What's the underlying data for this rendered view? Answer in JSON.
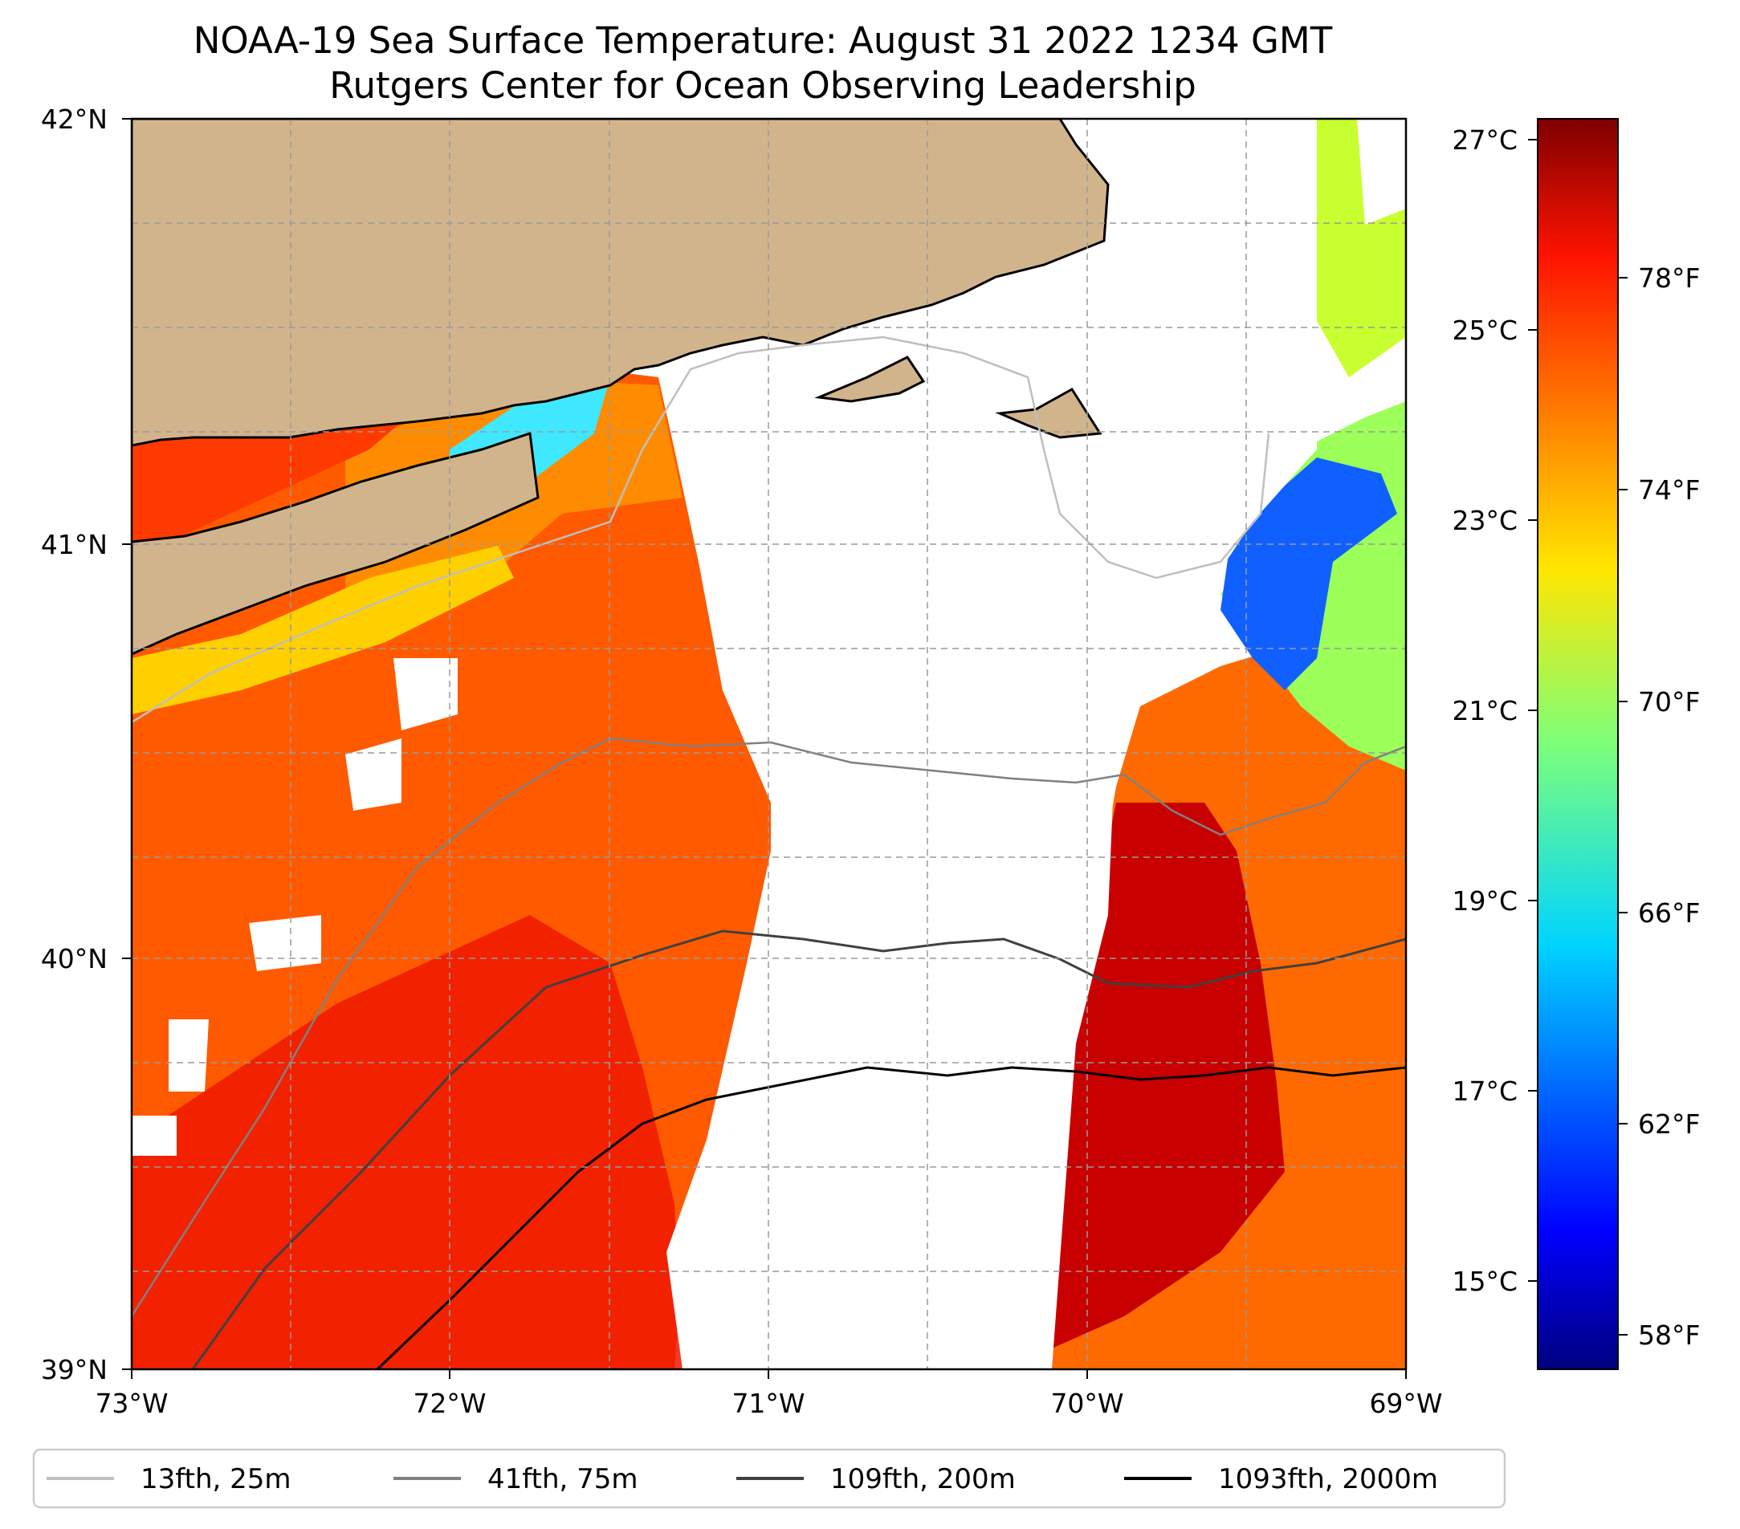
{
  "title": {
    "line1": "NOAA-19 Sea Surface Temperature: August 31 2022 1234 GMT",
    "line2": "Rutgers Center for Ocean Observing Leadership"
  },
  "map": {
    "lat_ticks": [
      "42°N",
      "41°N",
      "40°N",
      "39°N"
    ],
    "lon_ticks": [
      "73°W",
      "72°W",
      "71°W",
      "70°W",
      "69°W"
    ],
    "land_color": "#d2b48c",
    "grid": "dashed"
  },
  "colorbar": {
    "celsius_ticks": [
      "27°C",
      "25°C",
      "23°C",
      "21°C",
      "19°C",
      "17°C",
      "15°C"
    ],
    "fahrenheit_ticks": [
      "78°F",
      "74°F",
      "70°F",
      "66°F",
      "62°F",
      "58°F"
    ],
    "colormap": "jet",
    "min_f": 56.5,
    "max_f": 81.2
  },
  "legend": {
    "items": [
      {
        "label": "13fth, 25m",
        "color": "#bfbfbf"
      },
      {
        "label": "41fth, 75m",
        "color": "#808080"
      },
      {
        "label": "109fth, 200m",
        "color": "#404040"
      },
      {
        "label": "1093fth, 2000m",
        "color": "#000000"
      }
    ]
  }
}
